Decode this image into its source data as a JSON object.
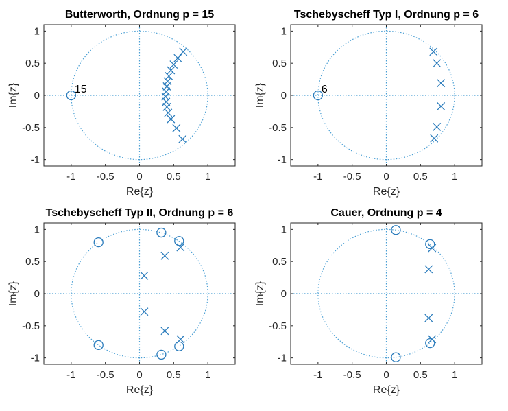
{
  "colors": {
    "marker": "#2b7cbc",
    "guide": "#4a9fd4",
    "axis": "#262626"
  },
  "chart_data": [
    {
      "type": "scatter",
      "title": "Butterworth, Ordnung p = 15",
      "xlabel": "Re{z}",
      "ylabel": "Im{z}",
      "xlim": [
        -1.4,
        1.4
      ],
      "ylim": [
        -1.1,
        1.1
      ],
      "xticks": [
        -1,
        -0.5,
        0,
        0.5,
        1
      ],
      "yticks": [
        -1,
        -0.5,
        0,
        0.5,
        1
      ],
      "xtick_labels": [
        "-1",
        "-0.5",
        "0",
        "0.5",
        "1"
      ],
      "ytick_labels": [
        "-1",
        "-0.5",
        "0",
        "0.5",
        "1"
      ],
      "unit_circle": true,
      "zeros": [
        [
          -1,
          0
        ]
      ],
      "poles": [
        [
          0.64,
          0.68
        ],
        [
          0.56,
          0.58
        ],
        [
          0.5,
          0.48
        ],
        [
          0.46,
          0.39
        ],
        [
          0.43,
          0.3
        ],
        [
          0.41,
          0.22
        ],
        [
          0.4,
          0.14
        ],
        [
          0.39,
          0.06
        ],
        [
          0.38,
          -0.02
        ],
        [
          0.39,
          -0.1
        ],
        [
          0.4,
          -0.18
        ],
        [
          0.42,
          -0.27
        ],
        [
          0.46,
          -0.37
        ],
        [
          0.54,
          -0.51
        ],
        [
          0.63,
          -0.68
        ]
      ],
      "annotation": {
        "text": "15",
        "at": [
          -1,
          0
        ]
      }
    },
    {
      "type": "scatter",
      "title": "Tschebyscheff Typ I, Ordnung p = 6",
      "xlabel": "Re{z}",
      "ylabel": "Im{z}",
      "xlim": [
        -1.4,
        1.4
      ],
      "ylim": [
        -1.1,
        1.1
      ],
      "xticks": [
        -1,
        -0.5,
        0,
        0.5,
        1
      ],
      "yticks": [
        -1,
        -0.5,
        0,
        0.5,
        1
      ],
      "xtick_labels": [
        "-1",
        "-0.5",
        "0",
        "0.5",
        "1"
      ],
      "ytick_labels": [
        "-1",
        "-0.5",
        "0",
        "0.5",
        "1"
      ],
      "unit_circle": true,
      "zeros": [
        [
          -1,
          0
        ]
      ],
      "poles": [
        [
          0.69,
          0.68
        ],
        [
          0.74,
          0.5
        ],
        [
          0.8,
          0.19
        ],
        [
          0.8,
          -0.17
        ],
        [
          0.74,
          -0.49
        ],
        [
          0.7,
          -0.67
        ]
      ],
      "annotation": {
        "text": "6",
        "at": [
          -1,
          0
        ]
      }
    },
    {
      "type": "scatter",
      "title": "Tschebyscheff Typ II, Ordnung p = 6",
      "xlabel": "Re{z}",
      "ylabel": "Im{z}",
      "xlim": [
        -1.4,
        1.4
      ],
      "ylim": [
        -1.1,
        1.1
      ],
      "xticks": [
        -1,
        -0.5,
        0,
        0.5,
        1
      ],
      "yticks": [
        -1,
        -0.5,
        0,
        0.5,
        1
      ],
      "xtick_labels": [
        "-1",
        "-0.5",
        "0",
        "0.5",
        "1"
      ],
      "ytick_labels": [
        "-1",
        "-0.5",
        "0",
        "0.5",
        "1"
      ],
      "unit_circle": true,
      "zeros": [
        [
          -0.6,
          0.8
        ],
        [
          0.32,
          0.95
        ],
        [
          0.58,
          0.82
        ],
        [
          -0.6,
          -0.8
        ],
        [
          0.32,
          -0.95
        ],
        [
          0.58,
          -0.82
        ]
      ],
      "poles": [
        [
          0.07,
          0.28
        ],
        [
          0.37,
          0.59
        ],
        [
          0.6,
          0.72
        ],
        [
          0.07,
          -0.28
        ],
        [
          0.37,
          -0.58
        ],
        [
          0.6,
          -0.71
        ]
      ]
    },
    {
      "type": "scatter",
      "title": "Cauer, Ordnung p = 4",
      "xlabel": "Re{z}",
      "ylabel": "Im{z}",
      "xlim": [
        -1.4,
        1.4
      ],
      "ylim": [
        -1.1,
        1.1
      ],
      "xticks": [
        -1,
        -0.5,
        0,
        0.5,
        1
      ],
      "yticks": [
        -1,
        -0.5,
        0,
        0.5,
        1
      ],
      "xtick_labels": [
        "-1",
        "-0.5",
        "0",
        "0.5",
        "1"
      ],
      "ytick_labels": [
        "-1",
        "-0.5",
        "0",
        "0.5",
        "1"
      ],
      "unit_circle": true,
      "zeros": [
        [
          0.14,
          0.99
        ],
        [
          0.64,
          0.77
        ],
        [
          0.14,
          -0.99
        ],
        [
          0.64,
          -0.77
        ]
      ],
      "poles": [
        [
          0.67,
          0.71
        ],
        [
          0.62,
          0.38
        ],
        [
          0.62,
          -0.38
        ],
        [
          0.67,
          -0.71
        ]
      ]
    }
  ]
}
